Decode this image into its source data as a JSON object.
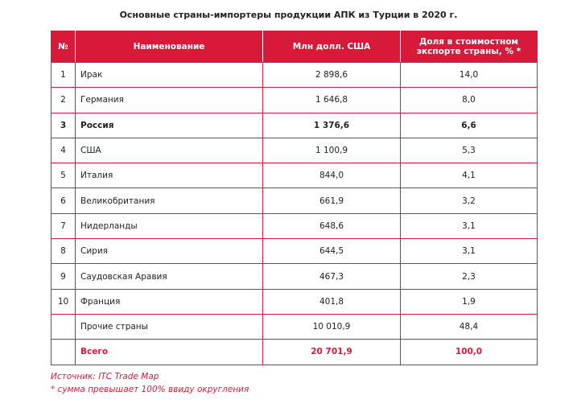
{
  "title": "Основные страны-импортеры продукции АПК из Турции в 2020 г.",
  "table": {
    "header": [
      "№",
      "Наименование",
      "Млн долл. США",
      "Доля в стоимостном экспорте страны, % *"
    ],
    "rows": [
      {
        "no": "1",
        "name": "Ирак",
        "value": "2 898,6",
        "share": "14,0"
      },
      {
        "no": "2",
        "name": "Германия",
        "value": "1 646,8",
        "share": "8,0"
      },
      {
        "no": "3",
        "name": "Россия",
        "value": "1 376,6",
        "share": "6,6",
        "bold": true
      },
      {
        "no": "4",
        "name": "США",
        "value": "1 100,9",
        "share": "5,3"
      },
      {
        "no": "5",
        "name": "Италия",
        "value": "844,0",
        "share": "4,1"
      },
      {
        "no": "6",
        "name": "Великобритания",
        "value": "661,9",
        "share": "3,2"
      },
      {
        "no": "7",
        "name": "Нидерланды",
        "value": "648,6",
        "share": "3,1"
      },
      {
        "no": "8",
        "name": "Сирия",
        "value": "644,5",
        "share": "3,1"
      },
      {
        "no": "9",
        "name": "Саудовская Аравия",
        "value": "467,3",
        "share": "2,3"
      },
      {
        "no": "10",
        "name": "Франция",
        "value": "401,8",
        "share": "1,9"
      },
      {
        "name": "Прочие страны",
        "value": "10 010,9",
        "share": "48,4"
      },
      {
        "name": "Всего",
        "value": "20 701,9",
        "share": "100,0",
        "bold": true,
        "color": "#d7193a"
      }
    ]
  },
  "footnotes": [
    "Источник: ITC Trade Map",
    "* сумма превышает 100% ввиду округления"
  ]
}
